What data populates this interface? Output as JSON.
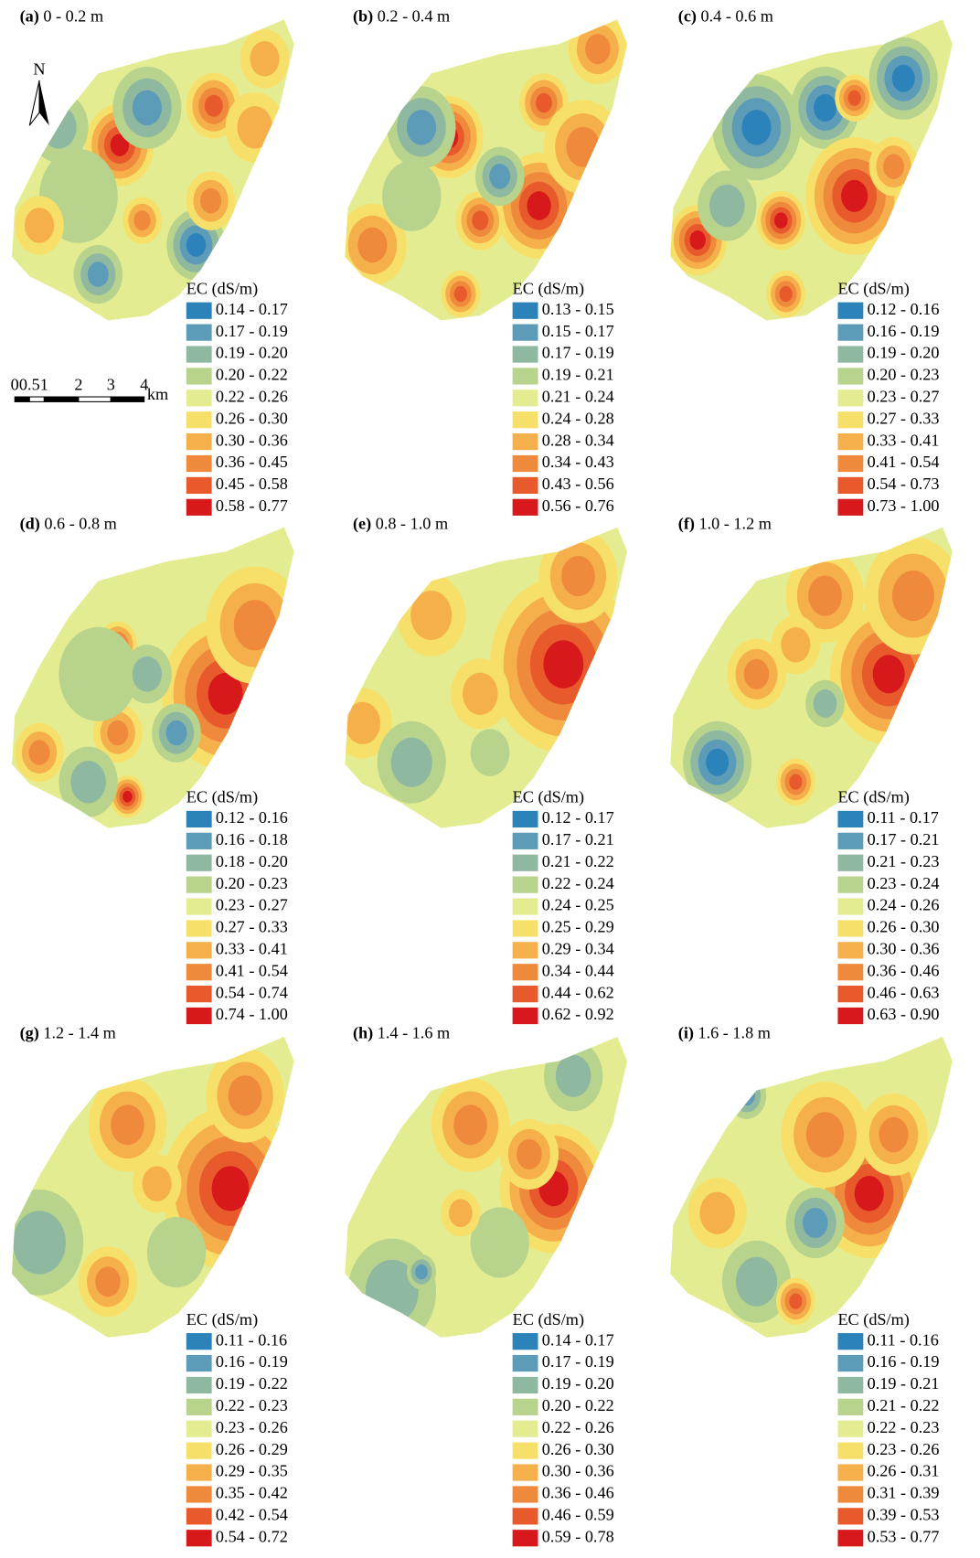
{
  "north_label": "N",
  "scale_bar": {
    "ticks": [
      "0",
      "0.5",
      "1",
      "2",
      "3",
      "4"
    ],
    "unit": "km"
  },
  "palette": [
    "#2b83ba",
    "#5d9cb8",
    "#8fb8a0",
    "#b7d38c",
    "#e4ec92",
    "#f6e06a",
    "#f5b04c",
    "#ef8a3c",
    "#e85a2c",
    "#d7191c"
  ],
  "panels": [
    {
      "label": "(a)",
      "depth": "0 - 0.2 m",
      "legend_title": "EC (dS/m)",
      "classes": [
        "0.14 - 0.17",
        "0.17 - 0.19",
        "0.19 - 0.20",
        "0.20 - 0.22",
        "0.22 - 0.26",
        "0.26 - 0.30",
        "0.30 - 0.36",
        "0.36 - 0.45",
        "0.45 - 0.58",
        "0.58 - 0.77"
      ]
    },
    {
      "label": "(b)",
      "depth": "0.2 - 0.4 m",
      "legend_title": "EC (dS/m)",
      "classes": [
        "0.13 - 0.15",
        "0.15 - 0.17",
        "0.17 - 0.19",
        "0.19 - 0.21",
        "0.21 - 0.24",
        "0.24 - 0.28",
        "0.28 - 0.34",
        "0.34 - 0.43",
        "0.43 - 0.56",
        "0.56 - 0.76"
      ]
    },
    {
      "label": "(c)",
      "depth": "0.4 - 0.6 m",
      "legend_title": "EC (dS/m)",
      "classes": [
        "0.12 - 0.16",
        "0.16 - 0.19",
        "0.19 - 0.20",
        "0.20 - 0.23",
        "0.23 - 0.27",
        "0.27 - 0.33",
        "0.33 - 0.41",
        "0.41 - 0.54",
        "0.54 - 0.73",
        "0.73 - 1.00"
      ]
    },
    {
      "label": "(d)",
      "depth": "0.6 - 0.8 m",
      "legend_title": "EC (dS/m)",
      "classes": [
        "0.12 - 0.16",
        "0.16 - 0.18",
        "0.18 - 0.20",
        "0.20 - 0.23",
        "0.23 - 0.27",
        "0.27 - 0.33",
        "0.33 - 0.41",
        "0.41 - 0.54",
        "0.54 - 0.74",
        "0.74 - 1.00"
      ]
    },
    {
      "label": "(e)",
      "depth": "0.8 - 1.0 m",
      "legend_title": "EC (dS/m)",
      "classes": [
        "0.12 - 0.17",
        "0.17 - 0.21",
        "0.21 - 0.22",
        "0.22 - 0.24",
        "0.24 - 0.25",
        "0.25 - 0.29",
        "0.29 - 0.34",
        "0.34 - 0.44",
        "0.44 - 0.62",
        "0.62 - 0.92"
      ]
    },
    {
      "label": "(f)",
      "depth": "1.0 - 1.2 m",
      "legend_title": "EC (dS/m)",
      "classes": [
        "0.11 - 0.17",
        "0.17 - 0.21",
        "0.21 - 0.23",
        "0.23 - 0.24",
        "0.24 - 0.26",
        "0.26 - 0.30",
        "0.30 - 0.36",
        "0.36 - 0.46",
        "0.46 - 0.63",
        "0.63 - 0.90"
      ]
    },
    {
      "label": "(g)",
      "depth": "1.2 - 1.4 m",
      "legend_title": "EC (dS/m)",
      "classes": [
        "0.11 - 0.16",
        "0.16 - 0.19",
        "0.19 - 0.22",
        "0.22 - 0.23",
        "0.23 - 0.26",
        "0.26 - 0.29",
        "0.29 - 0.35",
        "0.35 - 0.42",
        "0.42 - 0.54",
        "0.54 - 0.72"
      ]
    },
    {
      "label": "(h)",
      "depth": "1.4 - 1.6 m",
      "legend_title": "EC (dS/m)",
      "classes": [
        "0.14 - 0.17",
        "0.17 - 0.19",
        "0.19 - 0.20",
        "0.20 - 0.22",
        "0.22 - 0.26",
        "0.26 - 0.30",
        "0.30 - 0.36",
        "0.36 - 0.46",
        "0.46 - 0.59",
        "0.59 - 0.78"
      ]
    },
    {
      "label": "(i)",
      "depth": "1.6 - 1.8 m",
      "legend_title": "EC (dS/m)",
      "classes": [
        "0.11 - 0.16",
        "0.16 - 0.19",
        "0.19 - 0.21",
        "0.21 - 0.22",
        "0.22 - 0.23",
        "0.23 - 0.26",
        "0.26 - 0.31",
        "0.31 - 0.39",
        "0.39 - 0.53",
        "0.53 - 0.77"
      ]
    }
  ]
}
